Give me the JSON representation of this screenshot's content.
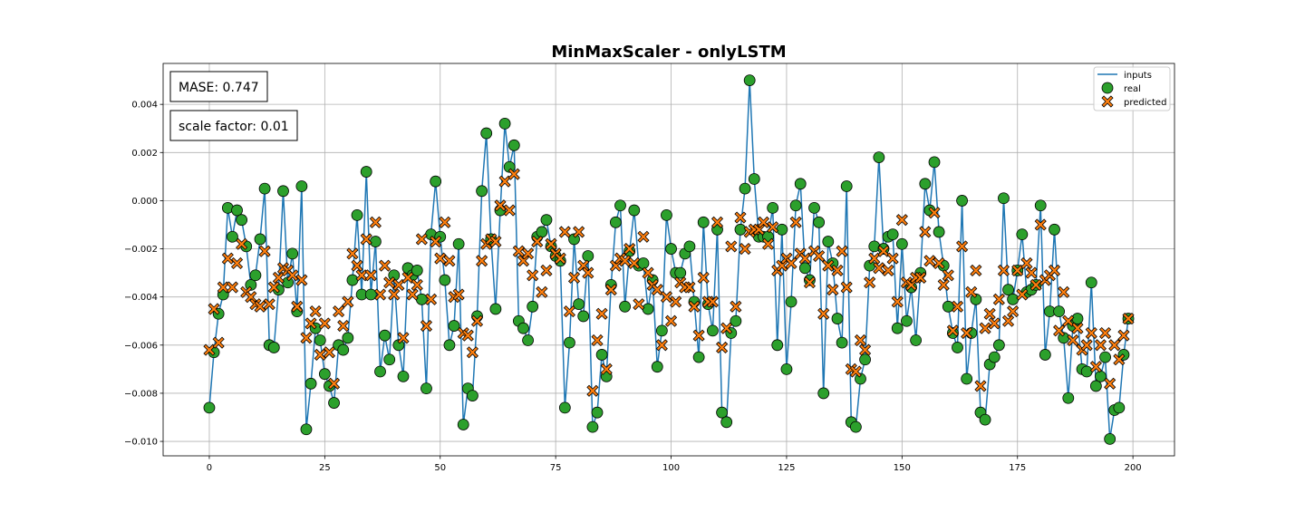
{
  "chart_data": {
    "type": "line",
    "title": "MinMaxScaler - onlyLSTM",
    "xlabel": "",
    "ylabel": "",
    "xlim": [
      -10,
      209
    ],
    "ylim": [
      -0.0106,
      0.0057
    ],
    "x_ticks": [
      0,
      25,
      50,
      75,
      100,
      125,
      150,
      175,
      200
    ],
    "x_tick_labels": [
      "0",
      "25",
      "50",
      "75",
      "100",
      "125",
      "150",
      "175",
      "200"
    ],
    "y_ticks": [
      -0.01,
      -0.008,
      -0.006,
      -0.004,
      -0.002,
      0.0,
      0.002,
      0.004
    ],
    "y_tick_labels": [
      "−0.010",
      "−0.008",
      "−0.006",
      "−0.004",
      "−0.002",
      "0.000",
      "0.002",
      "0.004"
    ],
    "grid": true,
    "legend_position": "top-right",
    "annotations": [
      {
        "text": "MASE: 0.747"
      },
      {
        "text": "scale factor: 0.01"
      }
    ],
    "colors": {
      "inputs": "#1f77b4",
      "real": "#2ca02c",
      "predicted": "#ff7f0e",
      "edge": "#000000",
      "grid": "#b0b0b0"
    },
    "series": [
      {
        "name": "inputs",
        "marker": "line",
        "values": [
          -0.0086,
          -0.0063,
          -0.0047,
          -0.0039,
          -0.0003,
          -0.0015,
          -0.0004,
          -0.0008,
          -0.0019,
          -0.0035,
          -0.0031,
          -0.0016,
          0.0005,
          -0.006,
          -0.0061,
          -0.0037,
          0.0004,
          -0.0034,
          -0.0022,
          -0.0046,
          0.0006,
          -0.0095,
          -0.0076,
          -0.0053,
          -0.0058,
          -0.0072,
          -0.0077,
          -0.0084,
          -0.006,
          -0.0062,
          -0.0057,
          -0.0033,
          -0.0006,
          -0.0039,
          0.0012,
          -0.0039,
          -0.0017,
          -0.0071,
          -0.0056,
          -0.0066,
          -0.0031,
          -0.006,
          -0.0073,
          -0.0028,
          -0.0031,
          -0.0029,
          -0.0041,
          -0.0078,
          -0.0014,
          0.0008,
          -0.0015,
          -0.0033,
          -0.006,
          -0.0052,
          -0.0018,
          -0.0093,
          -0.0078,
          -0.0081,
          -0.0048,
          0.0004,
          0.0028,
          -0.0016,
          -0.0045,
          -0.0004,
          0.0032,
          0.0014,
          0.0023,
          -0.005,
          -0.0053,
          -0.0058,
          -0.0044,
          -0.0015,
          -0.0013,
          -0.0008,
          -0.0019,
          -0.0023,
          -0.0025,
          -0.0086,
          -0.0059,
          -0.0016,
          -0.0043,
          -0.0048,
          -0.0023,
          -0.0094,
          -0.0088,
          -0.0064,
          -0.0073,
          -0.0035,
          -0.0009,
          -0.0002,
          -0.0044,
          -0.0021,
          -0.0004,
          -0.0027,
          -0.0026,
          -0.0045,
          -0.0033,
          -0.0069,
          -0.0054,
          -0.0006,
          -0.002,
          -0.003,
          -0.003,
          -0.0022,
          -0.0019,
          -0.0042,
          -0.0065,
          -0.0009,
          -0.0043,
          -0.0054,
          -0.0012,
          -0.0088,
          -0.0092,
          -0.0055,
          -0.005,
          -0.0012,
          0.0005,
          0.005,
          0.0009,
          -0.0015,
          -0.0015,
          -0.0015,
          -0.0003,
          -0.006,
          -0.0012,
          -0.007,
          -0.0042,
          -0.0002,
          0.0007,
          -0.0028,
          -0.0033,
          -0.0003,
          -0.0009,
          -0.008,
          -0.0017,
          -0.0026,
          -0.0049,
          -0.0059,
          0.0006,
          -0.0092,
          -0.0094,
          -0.0074,
          -0.0066,
          -0.0027,
          -0.0019,
          0.0018,
          -0.002,
          -0.0015,
          -0.0014,
          -0.0053,
          -0.0018,
          -0.005,
          -0.0036,
          -0.0058,
          -0.003,
          0.0007,
          -0.0004,
          0.0016,
          -0.0013,
          -0.0027,
          -0.0044,
          -0.0055,
          -0.0061,
          0.0,
          -0.0074,
          -0.0055,
          -0.0041,
          -0.0088,
          -0.0091,
          -0.0068,
          -0.0065,
          -0.006,
          0.0001,
          -0.0037,
          -0.0041,
          -0.0029,
          -0.0014,
          -0.0038,
          -0.0037,
          -0.0035,
          -0.0002,
          -0.0064,
          -0.0046,
          -0.0012,
          -0.0046,
          -0.0057,
          -0.0082,
          -0.0052,
          -0.0049,
          -0.007,
          -0.0071,
          -0.0034,
          -0.0077,
          -0.0073,
          -0.0065,
          -0.0099,
          -0.0087,
          -0.0086,
          -0.0064,
          -0.0049
        ]
      },
      {
        "name": "real",
        "marker": "circle",
        "values": [
          -0.0086,
          -0.0063,
          -0.0047,
          -0.0039,
          -0.0003,
          -0.0015,
          -0.0004,
          -0.0008,
          -0.0019,
          -0.0035,
          -0.0031,
          -0.0016,
          0.0005,
          -0.006,
          -0.0061,
          -0.0037,
          0.0004,
          -0.0034,
          -0.0022,
          -0.0046,
          0.0006,
          -0.0095,
          -0.0076,
          -0.0053,
          -0.0058,
          -0.0072,
          -0.0077,
          -0.0084,
          -0.006,
          -0.0062,
          -0.0057,
          -0.0033,
          -0.0006,
          -0.0039,
          0.0012,
          -0.0039,
          -0.0017,
          -0.0071,
          -0.0056,
          -0.0066,
          -0.0031,
          -0.006,
          -0.0073,
          -0.0028,
          -0.0031,
          -0.0029,
          -0.0041,
          -0.0078,
          -0.0014,
          0.0008,
          -0.0015,
          -0.0033,
          -0.006,
          -0.0052,
          -0.0018,
          -0.0093,
          -0.0078,
          -0.0081,
          -0.0048,
          0.0004,
          0.0028,
          -0.0016,
          -0.0045,
          -0.0004,
          0.0032,
          0.0014,
          0.0023,
          -0.005,
          -0.0053,
          -0.0058,
          -0.0044,
          -0.0015,
          -0.0013,
          -0.0008,
          -0.0019,
          -0.0023,
          -0.0025,
          -0.0086,
          -0.0059,
          -0.0016,
          -0.0043,
          -0.0048,
          -0.0023,
          -0.0094,
          -0.0088,
          -0.0064,
          -0.0073,
          -0.0035,
          -0.0009,
          -0.0002,
          -0.0044,
          -0.0021,
          -0.0004,
          -0.0027,
          -0.0026,
          -0.0045,
          -0.0033,
          -0.0069,
          -0.0054,
          -0.0006,
          -0.002,
          -0.003,
          -0.003,
          -0.0022,
          -0.0019,
          -0.0042,
          -0.0065,
          -0.0009,
          -0.0043,
          -0.0054,
          -0.0012,
          -0.0088,
          -0.0092,
          -0.0055,
          -0.005,
          -0.0012,
          0.0005,
          0.005,
          0.0009,
          -0.0015,
          -0.0015,
          -0.0015,
          -0.0003,
          -0.006,
          -0.0012,
          -0.007,
          -0.0042,
          -0.0002,
          0.0007,
          -0.0028,
          -0.0033,
          -0.0003,
          -0.0009,
          -0.008,
          -0.0017,
          -0.0026,
          -0.0049,
          -0.0059,
          0.0006,
          -0.0092,
          -0.0094,
          -0.0074,
          -0.0066,
          -0.0027,
          -0.0019,
          0.0018,
          -0.002,
          -0.0015,
          -0.0014,
          -0.0053,
          -0.0018,
          -0.005,
          -0.0036,
          -0.0058,
          -0.003,
          0.0007,
          -0.0004,
          0.0016,
          -0.0013,
          -0.0027,
          -0.0044,
          -0.0055,
          -0.0061,
          0.0,
          -0.0074,
          -0.0055,
          -0.0041,
          -0.0088,
          -0.0091,
          -0.0068,
          -0.0065,
          -0.006,
          0.0001,
          -0.0037,
          -0.0041,
          -0.0029,
          -0.0014,
          -0.0038,
          -0.0037,
          -0.0035,
          -0.0002,
          -0.0064,
          -0.0046,
          -0.0012,
          -0.0046,
          -0.0057,
          -0.0082,
          -0.0052,
          -0.0049,
          -0.007,
          -0.0071,
          -0.0034,
          -0.0077,
          -0.0073,
          -0.0065,
          -0.0099,
          -0.0087,
          -0.0086,
          -0.0064,
          -0.0049
        ]
      },
      {
        "name": "predicted",
        "marker": "x",
        "values": [
          -0.0062,
          -0.0045,
          -0.0059,
          -0.0036,
          -0.0024,
          -0.0036,
          -0.0026,
          -0.0018,
          -0.0038,
          -0.004,
          -0.0043,
          -0.0044,
          -0.0021,
          -0.0043,
          -0.0036,
          -0.0032,
          -0.0028,
          -0.0029,
          -0.0031,
          -0.0044,
          -0.0033,
          -0.0057,
          -0.0051,
          -0.0046,
          -0.0064,
          -0.0051,
          -0.0063,
          -0.0076,
          -0.0046,
          -0.0052,
          -0.0042,
          -0.0022,
          -0.0027,
          -0.0031,
          -0.0016,
          -0.0031,
          -0.0009,
          -0.0039,
          -0.0027,
          -0.0034,
          -0.0039,
          -0.0035,
          -0.0057,
          -0.0032,
          -0.0039,
          -0.0035,
          -0.0016,
          -0.0052,
          -0.0041,
          -0.0017,
          -0.0024,
          -0.0009,
          -0.0025,
          -0.004,
          -0.0039,
          -0.0055,
          -0.0056,
          -0.0063,
          -0.005,
          -0.0025,
          -0.0018,
          -0.0016,
          -0.0017,
          -0.0002,
          0.0008,
          -0.0004,
          0.0011,
          -0.0021,
          -0.0025,
          -0.0022,
          -0.0031,
          -0.0017,
          -0.0038,
          -0.0029,
          -0.0018,
          -0.0022,
          -0.0024,
          -0.0013,
          -0.0046,
          -0.0032,
          -0.0013,
          -0.0027,
          -0.003,
          -0.0079,
          -0.0058,
          -0.0047,
          -0.007,
          -0.0037,
          -0.0027,
          -0.0024,
          -0.0025,
          -0.002,
          -0.0026,
          -0.0043,
          -0.0015,
          -0.003,
          -0.0035,
          -0.0037,
          -0.006,
          -0.004,
          -0.005,
          -0.0042,
          -0.0034,
          -0.0036,
          -0.0036,
          -0.0044,
          -0.0056,
          -0.0032,
          -0.0042,
          -0.0042,
          -0.0009,
          -0.0061,
          -0.0053,
          -0.0019,
          -0.0044,
          -0.0007,
          -0.002,
          -0.0013,
          -0.0012,
          -0.0012,
          -0.0009,
          -0.0018,
          -0.0011,
          -0.0029,
          -0.0027,
          -0.0024,
          -0.0026,
          -0.0009,
          -0.0022,
          -0.0024,
          -0.0034,
          -0.0021,
          -0.0023,
          -0.0047,
          -0.0027,
          -0.0037,
          -0.0029,
          -0.0021,
          -0.0036,
          -0.007,
          -0.0071,
          -0.0058,
          -0.0062,
          -0.0034,
          -0.0024,
          -0.0028,
          -0.0021,
          -0.0029,
          -0.0024,
          -0.0042,
          -0.0008,
          -0.0034,
          -0.0035,
          -0.0032,
          -0.0032,
          -0.0013,
          -0.0025,
          -0.0005,
          -0.0026,
          -0.0035,
          -0.0031,
          -0.0054,
          -0.0044,
          -0.0019,
          -0.0055,
          -0.0038,
          -0.0029,
          -0.0077,
          -0.0053,
          -0.0047,
          -0.0051,
          -0.0041,
          -0.0029,
          -0.005,
          -0.0046,
          -0.0029,
          -0.0039,
          -0.0026,
          -0.003,
          -0.0035,
          -0.001,
          -0.0033,
          -0.0031,
          -0.0029,
          -0.0054,
          -0.0038,
          -0.005,
          -0.0058,
          -0.0053,
          -0.0062,
          -0.006,
          -0.0055,
          -0.0069,
          -0.006,
          -0.0055,
          -0.0076,
          -0.006,
          -0.0066,
          -0.0056,
          -0.0049
        ]
      }
    ]
  }
}
